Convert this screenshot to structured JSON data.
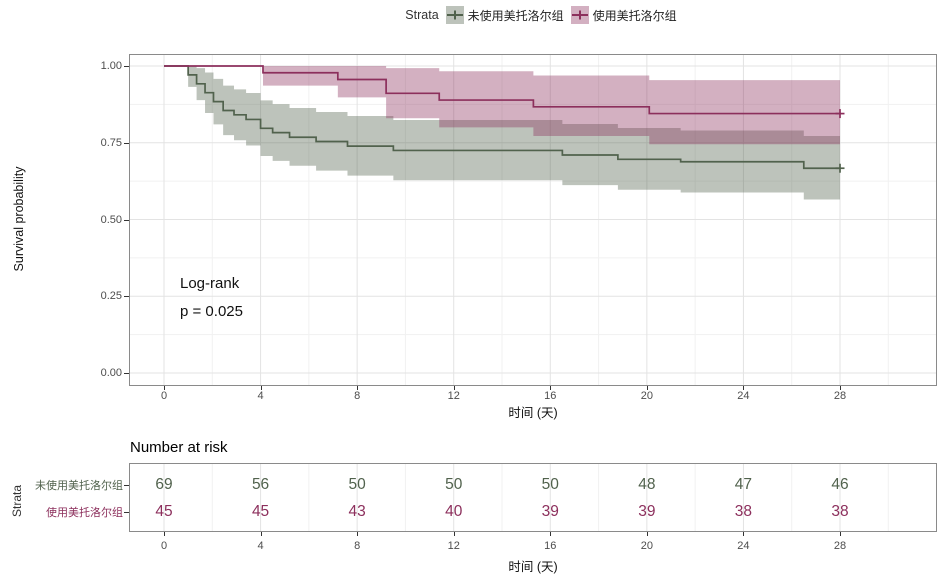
{
  "figure": {
    "background": "#ffffff"
  },
  "legend": {
    "title": "Strata",
    "position": "top"
  },
  "annotation": {
    "line1": "Log-rank",
    "line2": "p = 0.025"
  },
  "chart_data": {
    "type": "line",
    "subtype": "kaplan-meier-step",
    "title": "",
    "xlabel": "时间 (天)",
    "ylabel": "Survival probability",
    "xlim": [
      0,
      32
    ],
    "ylim": [
      -0.04,
      1.04
    ],
    "xticks": [
      0,
      4,
      8,
      12,
      16,
      20,
      24,
      28
    ],
    "xticks_minor": [
      2,
      6,
      10,
      14,
      18,
      22,
      26,
      30
    ],
    "yticks": [
      0.0,
      0.25,
      0.5,
      0.75,
      1.0
    ],
    "ytick_labels": [
      "0.00",
      "0.25",
      "0.50",
      "0.75",
      "1.00"
    ],
    "yticks_minor": [
      0.125,
      0.375,
      0.625,
      0.875
    ],
    "grid": true,
    "legend_position": "top",
    "legend_title": "Strata",
    "annotations": [
      "Log-rank",
      "p = 0.025"
    ],
    "series": [
      {
        "name": "未使用美托洛尔组",
        "color": "#51624d",
        "fill_opacity": 0.38,
        "steps": [
          {
            "t": 0,
            "s": 1.0,
            "lo": 1.0,
            "hi": 1.0
          },
          {
            "t": 1.0,
            "s": 0.971,
            "lo": 0.932,
            "hi": 1.0
          },
          {
            "t": 1.35,
            "s": 0.942,
            "lo": 0.889,
            "hi": 0.993
          },
          {
            "t": 1.7,
            "s": 0.913,
            "lo": 0.847,
            "hi": 0.979
          },
          {
            "t": 2.05,
            "s": 0.884,
            "lo": 0.81,
            "hi": 0.958
          },
          {
            "t": 2.45,
            "s": 0.855,
            "lo": 0.775,
            "hi": 0.936
          },
          {
            "t": 2.9,
            "s": 0.841,
            "lo": 0.758,
            "hi": 0.924
          },
          {
            "t": 3.4,
            "s": 0.826,
            "lo": 0.741,
            "hi": 0.912
          },
          {
            "t": 4.0,
            "s": 0.797,
            "lo": 0.707,
            "hi": 0.888
          },
          {
            "t": 4.5,
            "s": 0.783,
            "lo": 0.691,
            "hi": 0.876
          },
          {
            "t": 5.2,
            "s": 0.768,
            "lo": 0.675,
            "hi": 0.863
          },
          {
            "t": 6.3,
            "s": 0.754,
            "lo": 0.659,
            "hi": 0.85
          },
          {
            "t": 7.6,
            "s": 0.739,
            "lo": 0.643,
            "hi": 0.837
          },
          {
            "t": 9.5,
            "s": 0.725,
            "lo": 0.628,
            "hi": 0.824
          },
          {
            "t": 16.5,
            "s": 0.71,
            "lo": 0.612,
            "hi": 0.811
          },
          {
            "t": 18.8,
            "s": 0.696,
            "lo": 0.597,
            "hi": 0.798
          },
          {
            "t": 21.4,
            "s": 0.688,
            "lo": 0.588,
            "hi": 0.79
          },
          {
            "t": 26.5,
            "s": 0.667,
            "lo": 0.565,
            "hi": 0.772
          }
        ],
        "end_time": 28,
        "censor_marks": [
          {
            "t": 28,
            "s": 0.667
          }
        ]
      },
      {
        "name": "使用美托洛尔组",
        "color": "#8c2f5c",
        "fill_opacity": 0.38,
        "steps": [
          {
            "t": 0,
            "s": 1.0,
            "lo": 1.0,
            "hi": 1.0
          },
          {
            "t": 4.1,
            "s": 0.978,
            "lo": 0.936,
            "hi": 1.0
          },
          {
            "t": 7.2,
            "s": 0.956,
            "lo": 0.898,
            "hi": 1.0
          },
          {
            "t": 9.2,
            "s": 0.911,
            "lo": 0.83,
            "hi": 0.993
          },
          {
            "t": 11.4,
            "s": 0.889,
            "lo": 0.8,
            "hi": 0.983
          },
          {
            "t": 15.3,
            "s": 0.867,
            "lo": 0.772,
            "hi": 0.969
          },
          {
            "t": 20.1,
            "s": 0.845,
            "lo": 0.745,
            "hi": 0.954
          }
        ],
        "end_time": 28,
        "censor_marks": [
          {
            "t": 28,
            "s": 0.845
          }
        ]
      }
    ]
  },
  "risk_table": {
    "title": "Number at risk",
    "axis_label": "Strata",
    "xlabel": "时间 (天)",
    "times": [
      0,
      4,
      8,
      12,
      16,
      20,
      24,
      28
    ],
    "rows": [
      {
        "label": "未使用美托洛尔组",
        "color": "#51624d",
        "counts": [
          69,
          56,
          50,
          50,
          50,
          48,
          47,
          46
        ]
      },
      {
        "label": "使用美托洛尔组",
        "color": "#8c2f5c",
        "counts": [
          45,
          45,
          43,
          40,
          39,
          39,
          38,
          38
        ]
      }
    ]
  },
  "style_colors": {
    "grid_major": "#e3e3e3",
    "grid_minor": "#f1f1f1",
    "panel_border": "#8a8a8a",
    "tick_text": "#4d4d4d"
  }
}
